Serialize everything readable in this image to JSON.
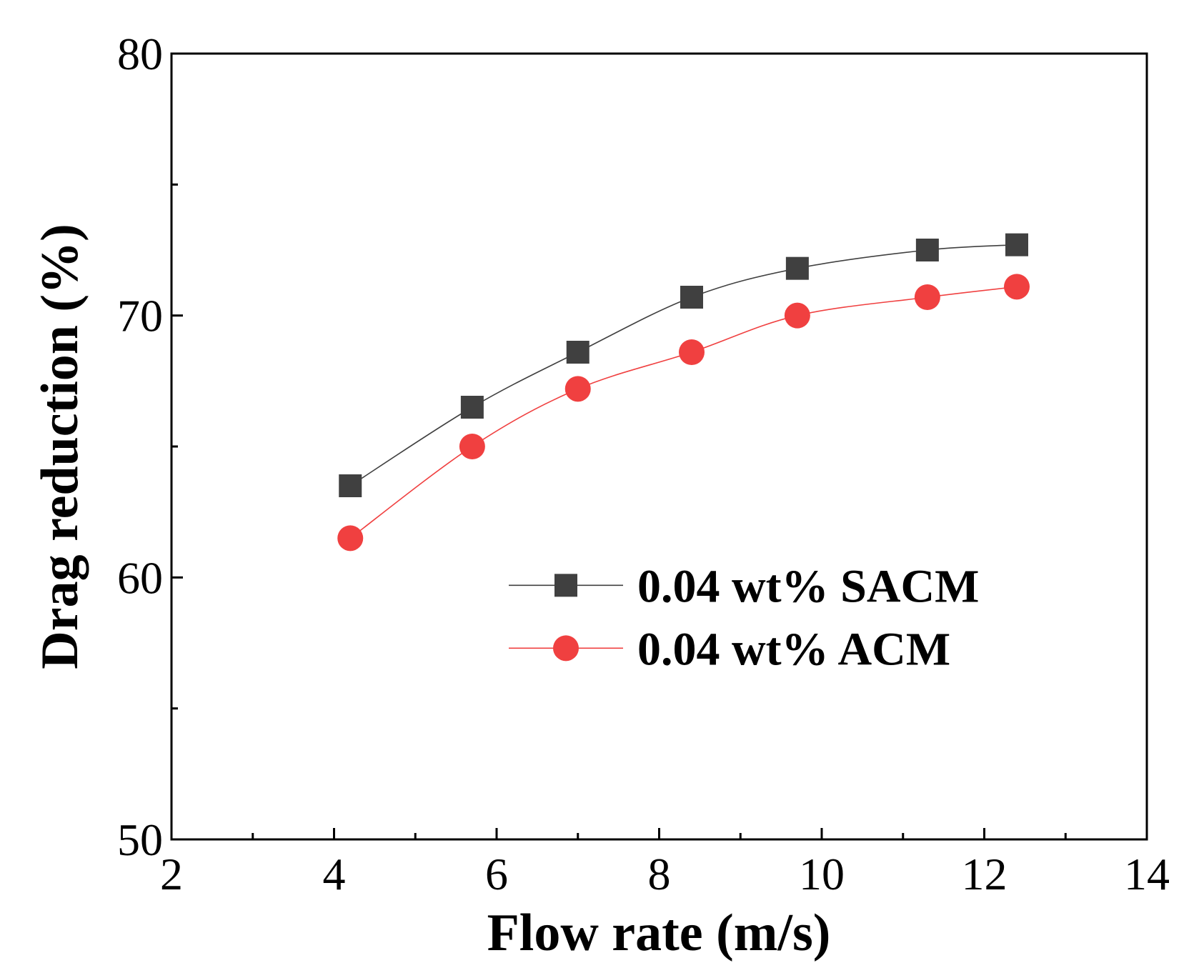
{
  "chart_data": {
    "type": "line",
    "xlabel": "Flow rate (m/s)",
    "ylabel": "Drag reduction (%)",
    "xlim": [
      2,
      14
    ],
    "ylim": [
      50,
      80
    ],
    "x_ticks": [
      2,
      4,
      6,
      8,
      10,
      12,
      14
    ],
    "y_ticks": [
      50,
      60,
      70,
      80
    ],
    "grid": false,
    "legend_position": "center-right",
    "series": [
      {
        "name": "0.04 wt% SACM",
        "marker": "square",
        "color": "#404040",
        "line_color": "#404040",
        "x": [
          4.2,
          5.7,
          7.0,
          8.4,
          9.7,
          11.3,
          12.4
        ],
        "y": [
          63.5,
          66.5,
          68.6,
          70.7,
          71.8,
          72.5,
          72.7
        ]
      },
      {
        "name": "0.04 wt% ACM",
        "marker": "circle",
        "color": "#f04040",
        "line_color": "#f04040",
        "x": [
          4.2,
          5.7,
          7.0,
          8.4,
          9.7,
          11.3,
          12.4
        ],
        "y": [
          61.5,
          65.0,
          67.2,
          68.6,
          70.0,
          70.7,
          71.1
        ]
      }
    ]
  }
}
